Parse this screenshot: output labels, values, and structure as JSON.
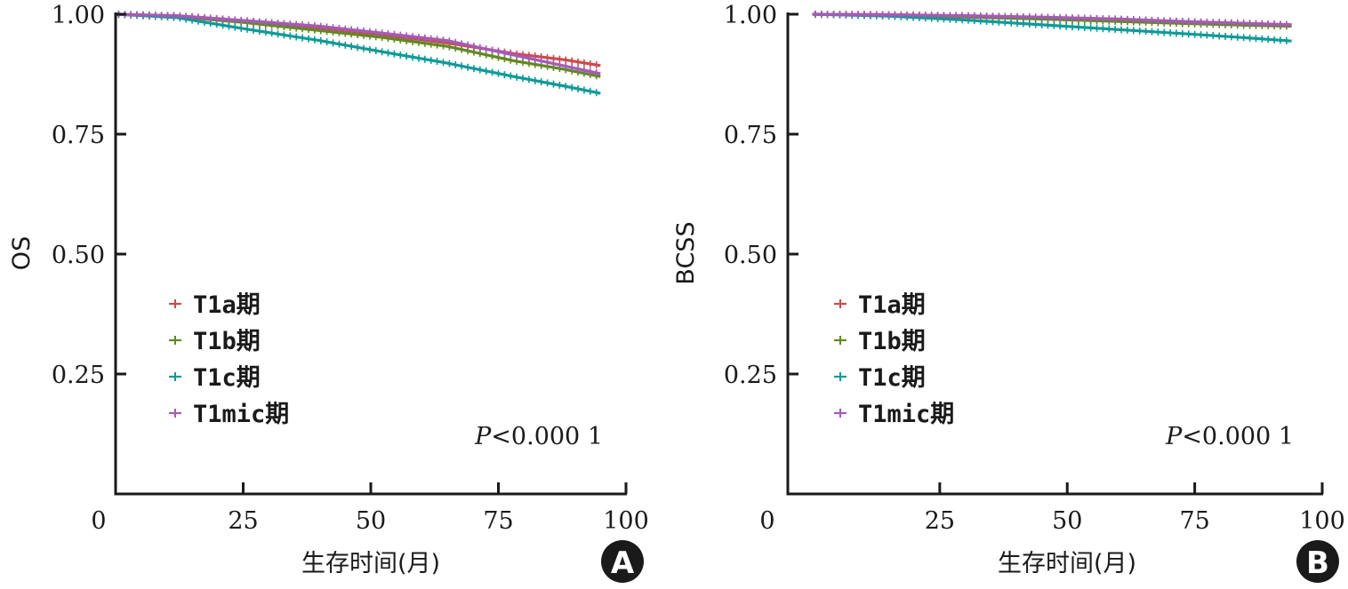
{
  "colors": {
    "T1a": "#cc4b4b",
    "T1b": "#5f8a1e",
    "T1c": "#0f9a98",
    "T1mic": "#a55bb5",
    "axis": "#1a1a1a",
    "badge": "#1a1a1a"
  },
  "chart_data": [
    {
      "panel": "A",
      "type": "line",
      "ylabel": "OS",
      "xlabel": "生存时间(月)",
      "xlim": [
        0,
        100
      ],
      "ylim": [
        0,
        1
      ],
      "xticks": [
        "0",
        "25",
        "50",
        "75",
        "100"
      ],
      "yticks": [
        "1.00",
        "0.75",
        "0.50",
        "0.25"
      ],
      "annotation": {
        "italic": "P",
        "text": "<0.000 1"
      },
      "legend_position": "left-lower",
      "badge": "A",
      "series": [
        {
          "key": "T1a",
          "name": "T1a期",
          "x": [
            0,
            12,
            25,
            40,
            52,
            65,
            78,
            88,
            95
          ],
          "y": [
            1.0,
            0.996,
            0.985,
            0.97,
            0.957,
            0.94,
            0.918,
            0.905,
            0.893
          ]
        },
        {
          "key": "T1b",
          "name": "T1b期",
          "x": [
            0,
            12,
            25,
            40,
            52,
            65,
            78,
            88,
            95
          ],
          "y": [
            1.0,
            0.995,
            0.983,
            0.966,
            0.952,
            0.933,
            0.903,
            0.885,
            0.87
          ]
        },
        {
          "key": "T1c",
          "name": "T1c期",
          "x": [
            0,
            12,
            25,
            40,
            52,
            65,
            78,
            88,
            95
          ],
          "y": [
            1.0,
            0.993,
            0.97,
            0.945,
            0.922,
            0.898,
            0.87,
            0.85,
            0.835
          ]
        },
        {
          "key": "T1mic",
          "name": "T1mic期",
          "x": [
            0,
            12,
            25,
            40,
            52,
            65,
            78,
            88,
            95
          ],
          "y": [
            1.0,
            0.997,
            0.987,
            0.975,
            0.961,
            0.945,
            0.915,
            0.892,
            0.876
          ]
        }
      ]
    },
    {
      "panel": "B",
      "type": "line",
      "ylabel": "BCSS",
      "xlabel": "生存时间(月)",
      "xlim": [
        -5,
        100
      ],
      "ylim": [
        0,
        1
      ],
      "xticks": [
        "0",
        "25",
        "50",
        "75",
        "100"
      ],
      "yticks": [
        "1.00",
        "0.75",
        "0.50",
        "0.25"
      ],
      "annotation": {
        "italic": "P",
        "text": "<0.000 1"
      },
      "legend_position": "left-lower",
      "badge": "B",
      "series": [
        {
          "key": "T1a",
          "name": "T1a期",
          "x": [
            0,
            15,
            30,
            45,
            60,
            75,
            85,
            94
          ],
          "y": [
            1.0,
            0.999,
            0.996,
            0.992,
            0.988,
            0.984,
            0.981,
            0.978
          ]
        },
        {
          "key": "T1b",
          "name": "T1b期",
          "x": [
            0,
            15,
            30,
            45,
            60,
            75,
            85,
            94
          ],
          "y": [
            1.0,
            0.998,
            0.994,
            0.99,
            0.985,
            0.98,
            0.977,
            0.975
          ]
        },
        {
          "key": "T1c",
          "name": "T1c期",
          "x": [
            0,
            15,
            30,
            45,
            60,
            75,
            85,
            94
          ],
          "y": [
            1.0,
            0.996,
            0.988,
            0.978,
            0.968,
            0.958,
            0.951,
            0.944
          ]
        },
        {
          "key": "T1mic",
          "name": "T1mic期",
          "x": [
            0,
            15,
            30,
            45,
            60,
            75,
            85,
            94
          ],
          "y": [
            1.0,
            0.999,
            0.997,
            0.994,
            0.99,
            0.984,
            0.981,
            0.978
          ]
        }
      ]
    }
  ]
}
